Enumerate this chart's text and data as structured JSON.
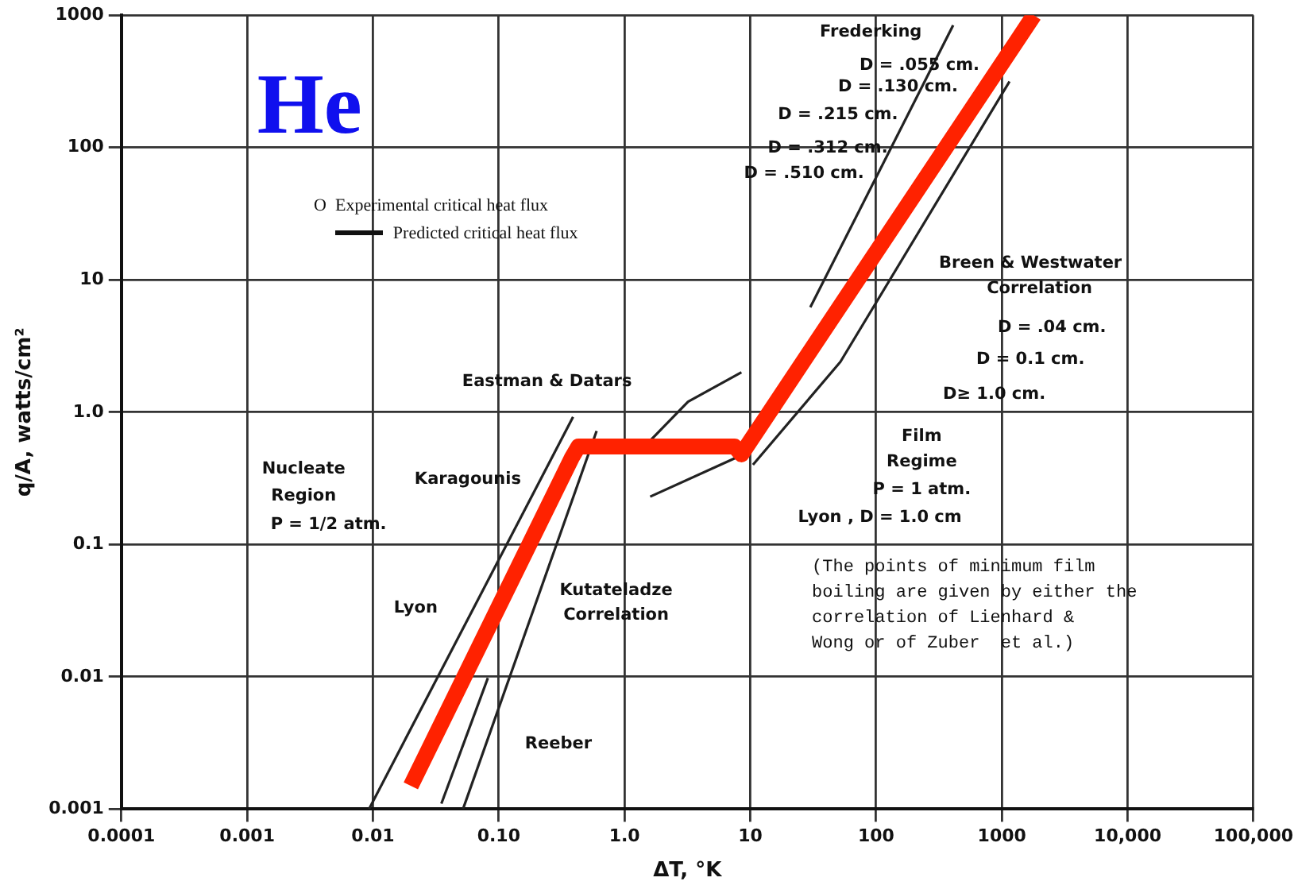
{
  "chart_data": {
    "type": "line",
    "xlabel": "ΔT, °K",
    "ylabel": "q/A, watts/cm²",
    "log": "xy",
    "grid": true,
    "marker": "none",
    "line_style": "solid",
    "xlim": [
      0.0001,
      100000
    ],
    "ylim": [
      0.001,
      1000
    ],
    "xticks": [
      0.0001,
      0.001,
      0.01,
      {
        "value": 0.1,
        "label": "0.10"
      },
      {
        "value": 1,
        "label": "1.0"
      },
      10,
      100,
      1000,
      {
        "value": 10000,
        "label": "10,000"
      },
      {
        "value": 100000,
        "label": "100,000"
      }
    ],
    "yticks": [
      0.001,
      0.01,
      0.1,
      {
        "value": 1,
        "label": "1.0"
      },
      10,
      100,
      1000
    ],
    "series": [
      {
        "color": "#ff2200",
        "x": [
          0.02,
          0.38,
          0.43,
          7.5,
          8.5,
          1800
        ],
        "values": [
          0.0015,
          0.45,
          0.55,
          0.55,
          0.48,
          1000
        ]
      },
      {
        "color": "#222222",
        "x": [
          0.0093,
          0.39
        ],
        "values": [
          0.001,
          0.92
        ]
      },
      {
        "color": "#222222",
        "x": [
          0.052,
          0.6
        ],
        "values": [
          0.001,
          0.72
        ]
      },
      {
        "color": "#222222",
        "x": [
          0.035,
          0.082
        ],
        "values": [
          0.0011,
          0.0098
        ]
      },
      {
        "color": "#222222",
        "x": [
          1.6,
          3.2,
          8.5
        ],
        "values": [
          0.61,
          1.2,
          2
        ]
      },
      {
        "color": "#222222",
        "x": [
          1.6,
          7.6
        ],
        "values": [
          0.23,
          0.45
        ]
      },
      {
        "color": "#222222",
        "x": [
          10.5,
          52,
          1150
        ],
        "values": [
          0.4,
          2.4,
          316
        ]
      },
      {
        "color": "#222222",
        "x": [
          30,
          410
        ],
        "values": [
          6.2,
          840
        ]
      }
    ],
    "annotations": [
      "He",
      "O  Experimental critical heat flux",
      "Predicted critical heat flux",
      "(The points of minimum film",
      "boiling are given by either the",
      "correlation of Lienhard &",
      "Wong or of Zuber  et al.)",
      "Frederking",
      "D = .055 cm.",
      "D = .130 cm.",
      "D = .215 cm.",
      "D = .312 cm.",
      "D = .510 cm.",
      "Breen & Westwater",
      "Correlation",
      "D = .04 cm.",
      "D = 0.1 cm.",
      "D≥ 1.0 cm.",
      "Film",
      "Regime",
      "P = 1 atm.",
      "Eastman & Datars",
      "Karagounis",
      "Nucleate",
      "Region",
      "P = 1/2 atm.",
      "Lyon",
      "Kutateladze",
      "Correlation",
      "Reeber",
      "Lyon , D = 1.0 cm"
    ]
  }
}
